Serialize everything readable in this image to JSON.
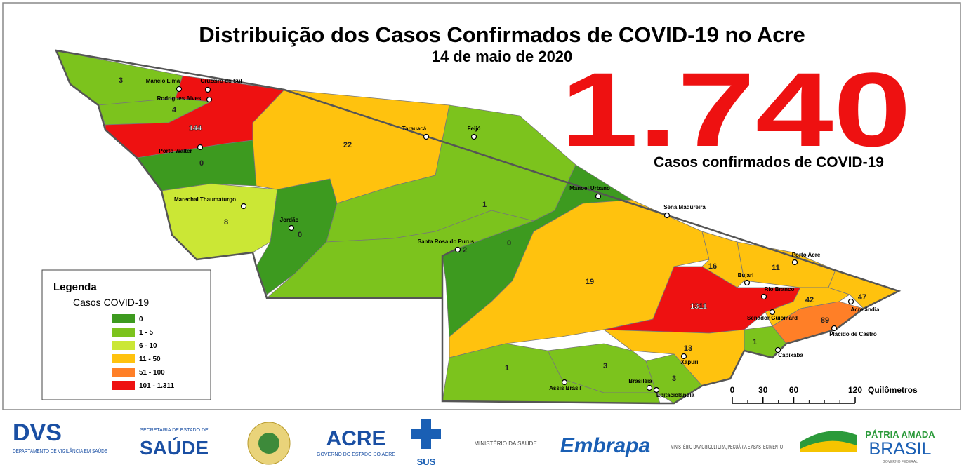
{
  "title": "Distribuição dos Casos Confirmados de COVID-19 no Acre",
  "subtitle": "14 de maio de 2020",
  "total": "1.740",
  "total_label": "Casos confirmados de COVID-19",
  "legend": {
    "title": "Legenda",
    "subtitle": "Casos COVID-19",
    "items": [
      {
        "label": "0",
        "color": "#3d9a1f"
      },
      {
        "label": "1 - 5",
        "color": "#7cc31d"
      },
      {
        "label": "6 - 10",
        "color": "#cbe735"
      },
      {
        "label": "11 - 50",
        "color": "#ffc20e"
      },
      {
        "label": "51 - 100",
        "color": "#ff7f27"
      },
      {
        "label": "101 - 1.311",
        "color": "#ee1111"
      }
    ]
  },
  "regions": [
    {
      "cases": 3,
      "color": "#7cc31d"
    },
    {
      "cases": 4,
      "color": "#7cc31d"
    },
    {
      "cases": 144,
      "color": "#ee1111"
    },
    {
      "cases": 0,
      "color": "#3d9a1f"
    },
    {
      "cases": 8,
      "color": "#cbe735"
    },
    {
      "cases": 0,
      "color": "#3d9a1f"
    },
    {
      "cases": 22,
      "color": "#ffc20e"
    },
    {
      "cases": 1,
      "color": "#7cc31d"
    },
    {
      "cases": 2,
      "color": "#7cc31d"
    },
    {
      "cases": 0,
      "color": "#3d9a1f"
    },
    {
      "cases": 19,
      "color": "#ffc20e"
    },
    {
      "cases": 1311,
      "color": "#ee1111"
    },
    {
      "cases": 16,
      "color": "#ffc20e"
    },
    {
      "cases": 11,
      "color": "#ffc20e"
    },
    {
      "cases": 42,
      "color": "#ffc20e"
    },
    {
      "cases": 47,
      "color": "#ffc20e"
    },
    {
      "cases": 89,
      "color": "#ff7f27"
    },
    {
      "cases": 1,
      "color": "#7cc31d"
    },
    {
      "cases": 13,
      "color": "#ffc20e"
    },
    {
      "cases": 3,
      "color": "#7cc31d"
    },
    {
      "cases": 3,
      "color": "#7cc31d"
    },
    {
      "cases": 1,
      "color": "#7cc31d"
    }
  ],
  "cities": [
    "Mancio Lima",
    "Cruzeiro do Sul",
    "Rodrigues Alves",
    "Porto Walter",
    "Marechal Thaumaturgo",
    "Jordão",
    "Tarauacá",
    "Feijó",
    "Manoel Urbano",
    "Sena Madureira",
    "Santa Rosa do Purus",
    "Porto Acre",
    "Bujari",
    "Rio Branco",
    "Senador Guiomard",
    "Acrelândia",
    "Plácido de Castro",
    "Capixaba",
    "Xapuri",
    "Assis Brasil",
    "Brasiléia",
    "Epitaciolândia"
  ],
  "scale": {
    "ticks": [
      0,
      30,
      60,
      120
    ],
    "lim": [
      0,
      120
    ],
    "unit": "Quilômetros"
  },
  "footer": {
    "dvs": "DVS",
    "dvs_sub": "DEPARTAMENTO DE VIGILÂNCIA EM SAÚDE",
    "sesacre_top": "SECRETARIA DE ESTADO DE",
    "saude": "SAÚDE",
    "acre": "ACRE",
    "acre_sub": "GOVERNO DO ESTADO DO ACRE",
    "sus": "SUS",
    "ministerio_saude": "MINISTÉRIO DA SAÚDE",
    "embrapa": "Embrapa",
    "mapa": "MINISTÉRIO DA AGRICULTURA, PECUÁRIA E ABASTECIMENTO",
    "patria": "PÁTRIA AMADA",
    "brasil": "BRASIL",
    "gov_federal": "GOVERNO FEDERAL"
  }
}
